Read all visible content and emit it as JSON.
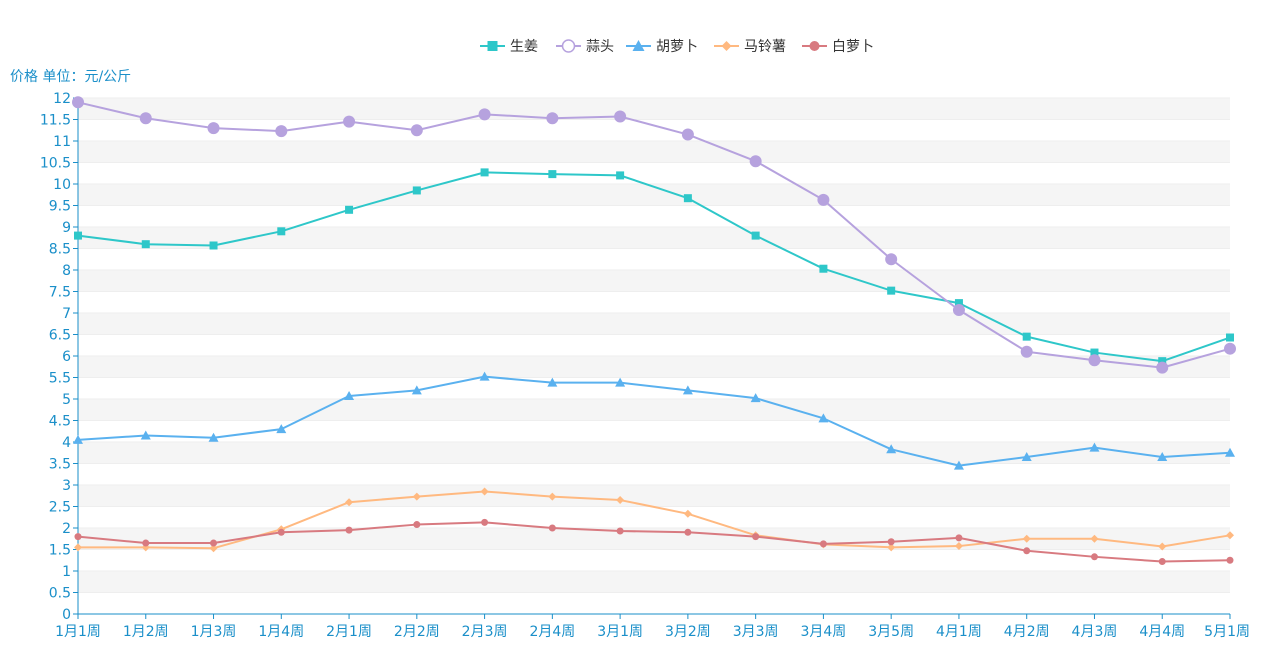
{
  "y_unit_label": "价格 单位：元/公斤",
  "chart_data": {
    "type": "line",
    "title": "",
    "xlabel": "",
    "ylabel": "价格 单位：元/公斤",
    "ylim": [
      0,
      12
    ],
    "y_tick_step": 0.5,
    "grid": "horizontal",
    "legend_position": "top-center",
    "categories": [
      "1月1周",
      "1月2周",
      "1月3周",
      "1月4周",
      "2月1周",
      "2月2周",
      "2月3周",
      "2月4周",
      "3月1周",
      "3月2周",
      "3月3周",
      "3月4周",
      "3月5周",
      "4月1周",
      "4月2周",
      "4月3周",
      "4月4周",
      "5月1周"
    ],
    "series": [
      {
        "name": "生姜",
        "color": "#2ec7c9",
        "marker": "square",
        "values": [
          8.8,
          8.6,
          8.57,
          8.9,
          9.4,
          9.85,
          10.27,
          10.23,
          10.2,
          9.67,
          8.8,
          8.03,
          7.52,
          7.23,
          6.45,
          6.08,
          5.88,
          6.43
        ]
      },
      {
        "name": "蒜头",
        "color": "#b6a2de",
        "marker": "circle",
        "values": [
          11.9,
          11.53,
          11.3,
          11.23,
          11.45,
          11.25,
          11.62,
          11.53,
          11.57,
          11.15,
          10.53,
          9.63,
          8.25,
          7.07,
          6.1,
          5.9,
          5.73,
          6.17
        ]
      },
      {
        "name": "胡萝卜",
        "color": "#5ab1ef",
        "marker": "triangle",
        "values": [
          4.05,
          4.15,
          4.1,
          4.3,
          5.07,
          5.2,
          5.52,
          5.38,
          5.38,
          5.2,
          5.02,
          4.55,
          3.83,
          3.45,
          3.65,
          3.87,
          3.65,
          3.75
        ]
      },
      {
        "name": "马铃薯",
        "color": "#ffb980",
        "marker": "diamond",
        "values": [
          1.55,
          1.55,
          1.53,
          1.97,
          2.6,
          2.73,
          2.85,
          2.73,
          2.65,
          2.33,
          1.83,
          1.62,
          1.55,
          1.58,
          1.75,
          1.75,
          1.57,
          1.83
        ]
      },
      {
        "name": "白萝卜",
        "color": "#d87a80",
        "marker": "circle-filled",
        "values": [
          1.8,
          1.65,
          1.65,
          1.9,
          1.95,
          2.08,
          2.13,
          2.0,
          1.93,
          1.9,
          1.8,
          1.63,
          1.68,
          1.77,
          1.47,
          1.33,
          1.22,
          1.25
        ]
      }
    ]
  }
}
